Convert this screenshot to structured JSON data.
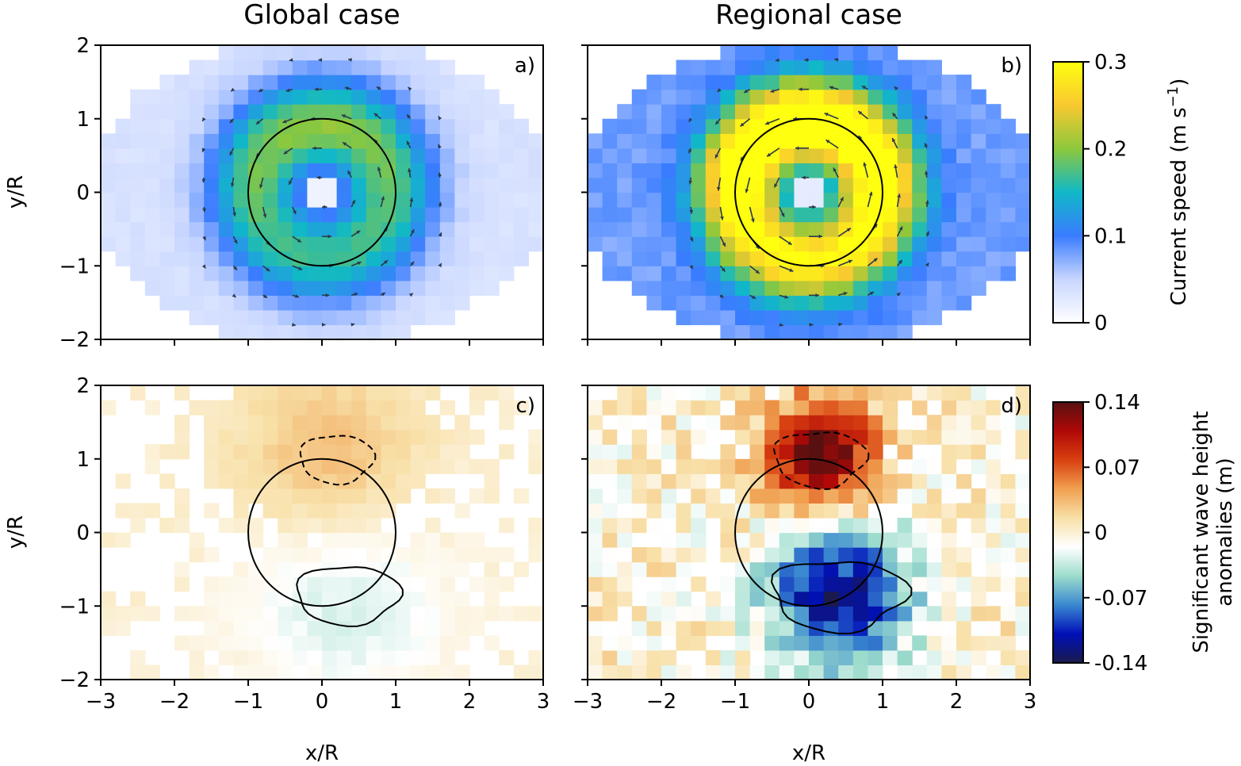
{
  "chart_data": {
    "type": "heatmap",
    "column_titles": [
      "Global case",
      "Regional case"
    ],
    "x_axis": {
      "label": "x/R",
      "range": [
        -3,
        3
      ],
      "ticks": [
        "−3",
        "−2",
        "−1",
        "0",
        "1",
        "2",
        "3"
      ]
    },
    "y_axis": {
      "label": "y/R",
      "range": [
        -2,
        2
      ],
      "ticks": [
        "2",
        "1",
        "0",
        "−1",
        "−2"
      ]
    },
    "panels": [
      {
        "label": "a)",
        "column": "Global case",
        "row": "current speed",
        "variable": "current_speed",
        "peak_speed": 0.18,
        "circle": {
          "center": [
            0,
            0
          ],
          "radius": 1
        },
        "vectors": "cyclonic",
        "grid": false
      },
      {
        "label": "b)",
        "column": "Regional case",
        "row": "current speed",
        "variable": "current_speed",
        "peak_speed": 0.3,
        "circle": {
          "center": [
            0,
            0
          ],
          "radius": 1
        },
        "vectors": "cyclonic",
        "grid": false
      },
      {
        "label": "c)",
        "column": "Global case",
        "row": "wave height anomaly",
        "variable": "hs_anomaly",
        "min_anomaly": -0.04,
        "max_anomaly": 0.04,
        "contours": [
          "dashed negative near (0, 1)",
          "solid positive near (0.3, -0.8)"
        ],
        "grid": false
      },
      {
        "label": "d)",
        "column": "Regional case",
        "row": "wave height anomaly",
        "variable": "hs_anomaly",
        "min_anomaly": -0.14,
        "max_anomaly": 0.12,
        "contours": [
          "dashed negative near (0.1, 1)",
          "solid positive near (0.4, -0.8)"
        ],
        "grid": false
      }
    ],
    "colorbars": [
      {
        "name": "current",
        "label": "Current speed (m s",
        "label_sup": "−1",
        "label_end": ")",
        "ticks": [
          "0.3",
          "0.2",
          "0.1",
          "0"
        ],
        "range": [
          0,
          0.3
        ],
        "colors": [
          "#ffffff",
          "#c8d6ff",
          "#3a7cff",
          "#10b8c8",
          "#8cc83c",
          "#f8c830",
          "#ffff10"
        ]
      },
      {
        "name": "hs",
        "label_lines": [
          "Significant wave height",
          "anomalies (m)"
        ],
        "ticks": [
          "0.14",
          "0.07",
          "0",
          "-0.07",
          "-0.14"
        ],
        "range": [
          -0.14,
          0.14
        ],
        "colors": [
          "#1a1a4c",
          "#0010b8",
          "#3a88d0",
          "#9cdccc",
          "#ffffff",
          "#f8e0a8",
          "#f0a050",
          "#d84010",
          "#b00808",
          "#581010"
        ]
      }
    ]
  }
}
